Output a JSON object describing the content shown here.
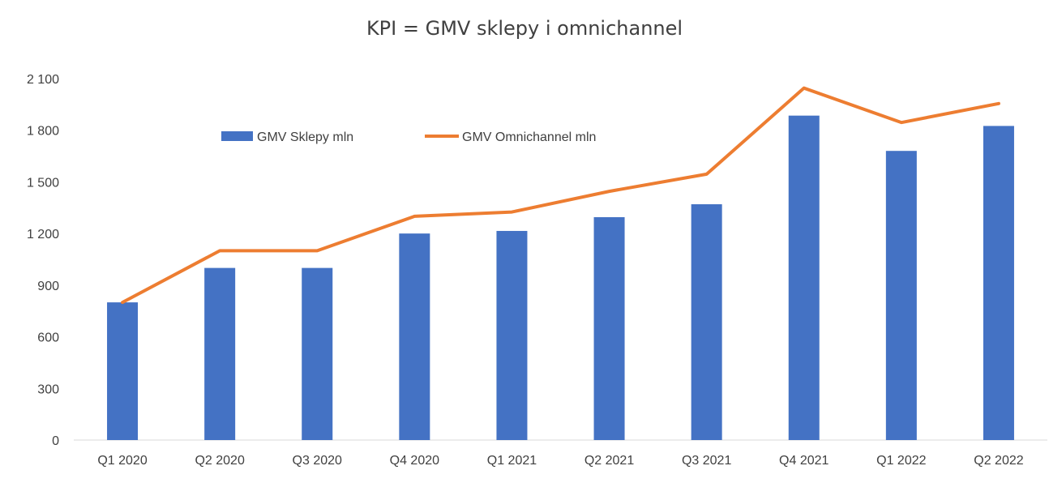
{
  "chart_data": {
    "type": "bar",
    "title": "KPI = GMV sklepy i omnichannel",
    "categories": [
      "Q1 2020",
      "Q2 2020",
      "Q3 2020",
      "Q4 2020",
      "Q1 2021",
      "Q2 2021",
      "Q3 2021",
      "Q4 2021",
      "Q1 2022",
      "Q2 2022"
    ],
    "series": [
      {
        "name": "GMV Sklepy mln",
        "type": "bar",
        "color": "#4472C4",
        "values": [
          800,
          1000,
          1000,
          1200,
          1215,
          1295,
          1370,
          1885,
          1680,
          1825
        ]
      },
      {
        "name": "GMV Omnichannel mln",
        "type": "line",
        "color": "#ED7D31",
        "values": [
          800,
          1100,
          1100,
          1300,
          1325,
          1445,
          1545,
          2045,
          1845,
          1955
        ]
      }
    ],
    "ylim": [
      0,
      2100
    ],
    "yticks": [
      0,
      300,
      600,
      900,
      1200,
      1500,
      1800,
      2100
    ],
    "ytick_labels": [
      "0",
      "300",
      "600",
      "900",
      "1 200",
      "1 500",
      "1 800",
      "2 100"
    ],
    "grid": false,
    "legend_position": "top-left"
  }
}
